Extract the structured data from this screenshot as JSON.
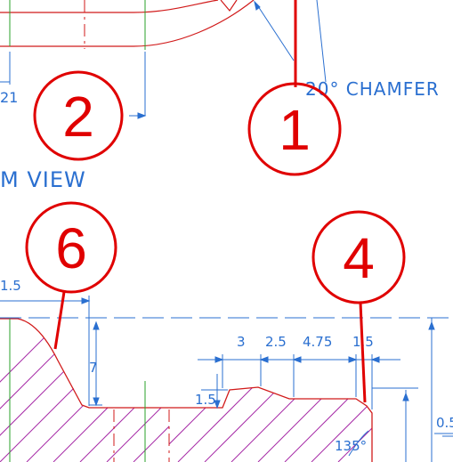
{
  "labels": {
    "chamfer": "20° CHAMFER",
    "view": "M VIEW",
    "dim_21": "21",
    "dim_15_left": "1.5",
    "dim_7": "7",
    "dim_3": "3",
    "dim_25": "2.5",
    "dim_475": "4.75",
    "dim_15_right": "1.5",
    "dim_15_small": "1.5",
    "dim_05": "0.5",
    "angle": "135°"
  },
  "callouts": [
    {
      "number": "1"
    },
    {
      "number": "2"
    },
    {
      "number": "4"
    },
    {
      "number": "6"
    }
  ],
  "colors": {
    "callout": "#e00000",
    "dimension": "#2a6fd0",
    "outline": "#d11a1a",
    "hatch": "#a62aa6",
    "centerline": "#2aa02a"
  }
}
